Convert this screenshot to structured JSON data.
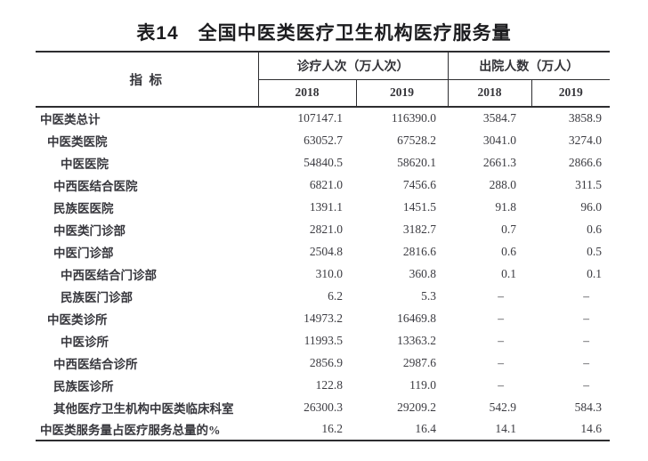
{
  "title": "表14　全国中医类医疗卫生机构医疗服务量",
  "table": {
    "indicator_header": "指 标",
    "groups": [
      {
        "label": "诊疗人次（万人次）",
        "years": [
          "2018",
          "2019"
        ]
      },
      {
        "label": "出院人数（万人）",
        "years": [
          "2018",
          "2019"
        ]
      }
    ],
    "rows": [
      {
        "label": "中医类总计",
        "indent": 0,
        "values": [
          "107147.1",
          "116390.0",
          "3584.7",
          "3858.9"
        ]
      },
      {
        "label": "中医类医院",
        "indent": 1,
        "values": [
          "63052.7",
          "67528.2",
          "3041.0",
          "3274.0"
        ]
      },
      {
        "label": "中医医院",
        "indent": 3,
        "values": [
          "54840.5",
          "58620.1",
          "2661.3",
          "2866.6"
        ]
      },
      {
        "label": "中西医结合医院",
        "indent": 2,
        "values": [
          "6821.0",
          "7456.6",
          "288.0",
          "311.5"
        ]
      },
      {
        "label": "民族医医院",
        "indent": 2,
        "values": [
          "1391.1",
          "1451.5",
          "91.8",
          "96.0"
        ]
      },
      {
        "label": "中医类门诊部",
        "indent": 2,
        "values": [
          "2821.0",
          "3182.7",
          "0.7",
          "0.6"
        ]
      },
      {
        "label": "中医门诊部",
        "indent": 2,
        "values": [
          "2504.8",
          "2816.6",
          "0.6",
          "0.5"
        ]
      },
      {
        "label": "中西医结合门诊部",
        "indent": 3,
        "values": [
          "310.0",
          "360.8",
          "0.1",
          "0.1"
        ]
      },
      {
        "label": "民族医门诊部",
        "indent": 3,
        "values": [
          "6.2",
          "5.3",
          "–",
          "–"
        ]
      },
      {
        "label": "中医类诊所",
        "indent": 1,
        "values": [
          "14973.2",
          "16469.8",
          "–",
          "–"
        ]
      },
      {
        "label": "中医诊所",
        "indent": 3,
        "values": [
          "11993.5",
          "13363.2",
          "–",
          "–"
        ]
      },
      {
        "label": "中西医结合诊所",
        "indent": 2,
        "values": [
          "2856.9",
          "2987.6",
          "–",
          "–"
        ]
      },
      {
        "label": "民族医诊所",
        "indent": 2,
        "values": [
          "122.8",
          "119.0",
          "–",
          "–"
        ]
      },
      {
        "label": "其他医疗卫生机构中医类临床科室",
        "indent": 2,
        "values": [
          "26300.3",
          "29209.2",
          "542.9",
          "584.3"
        ]
      },
      {
        "label": "中医类服务量占医疗服务总量的%",
        "indent": 0,
        "values": [
          "16.2",
          "16.4",
          "14.1",
          "14.6"
        ]
      }
    ]
  }
}
